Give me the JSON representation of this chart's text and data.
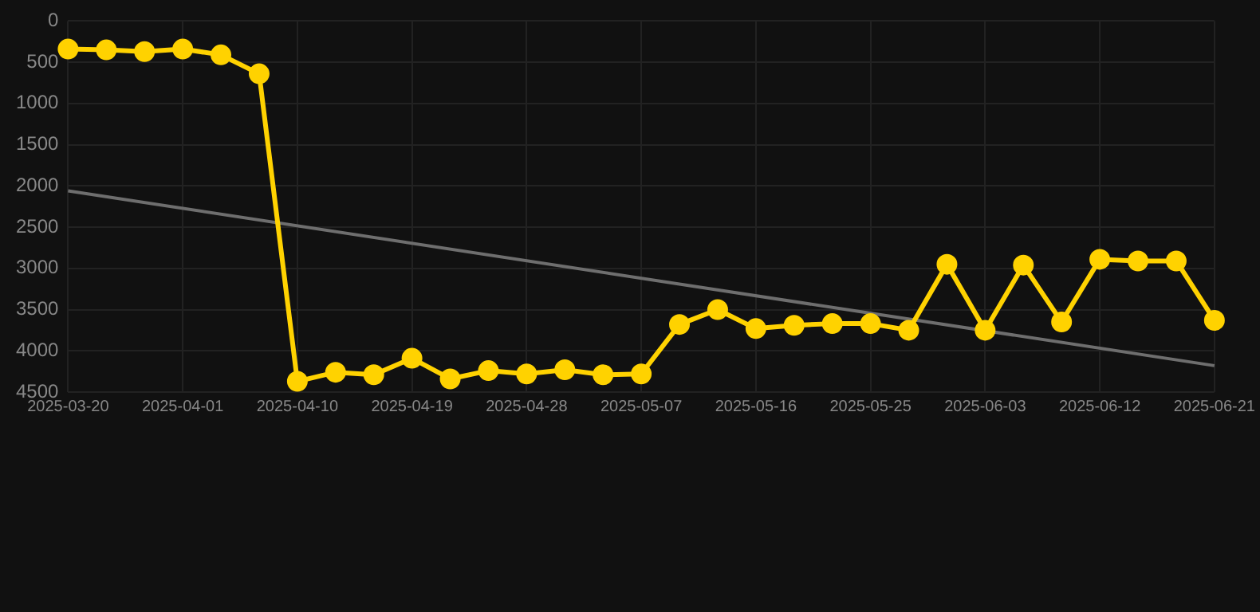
{
  "chart_data": {
    "type": "line",
    "categories": [
      "2025-03-20",
      null,
      null,
      "2025-04-01",
      null,
      null,
      "2025-04-10",
      null,
      null,
      "2025-04-19",
      null,
      null,
      "2025-04-28",
      null,
      null,
      "2025-05-07",
      null,
      null,
      "2025-05-16",
      null,
      null,
      "2025-05-25",
      null,
      null,
      "2025-06-03",
      null,
      null,
      "2025-06-12",
      null,
      null,
      "2025-06-21"
    ],
    "series": [
      {
        "color": "#ffd200",
        "marker": "circle",
        "values": [
          340,
          350,
          370,
          340,
          410,
          640,
          4370,
          4260,
          4290,
          4090,
          4340,
          4240,
          4280,
          4230,
          4290,
          4280,
          3680,
          3500,
          3730,
          3690,
          3670,
          3670,
          3750,
          2950,
          3750,
          2960,
          3650,
          2890,
          2910,
          2910,
          3630
        ]
      },
      {
        "color": "#6e6e6e",
        "marker": "none",
        "values": [
          2060,
          null,
          null,
          null,
          null,
          null,
          null,
          null,
          null,
          null,
          null,
          null,
          null,
          null,
          null,
          null,
          null,
          null,
          null,
          null,
          null,
          null,
          null,
          null,
          null,
          null,
          null,
          null,
          null,
          null,
          4180
        ]
      }
    ],
    "ylim": [
      4500,
      0
    ],
    "yticks": [
      0,
      500,
      1000,
      1500,
      2000,
      2500,
      3000,
      3500,
      4000,
      4500
    ],
    "grid": true,
    "legend": false
  }
}
